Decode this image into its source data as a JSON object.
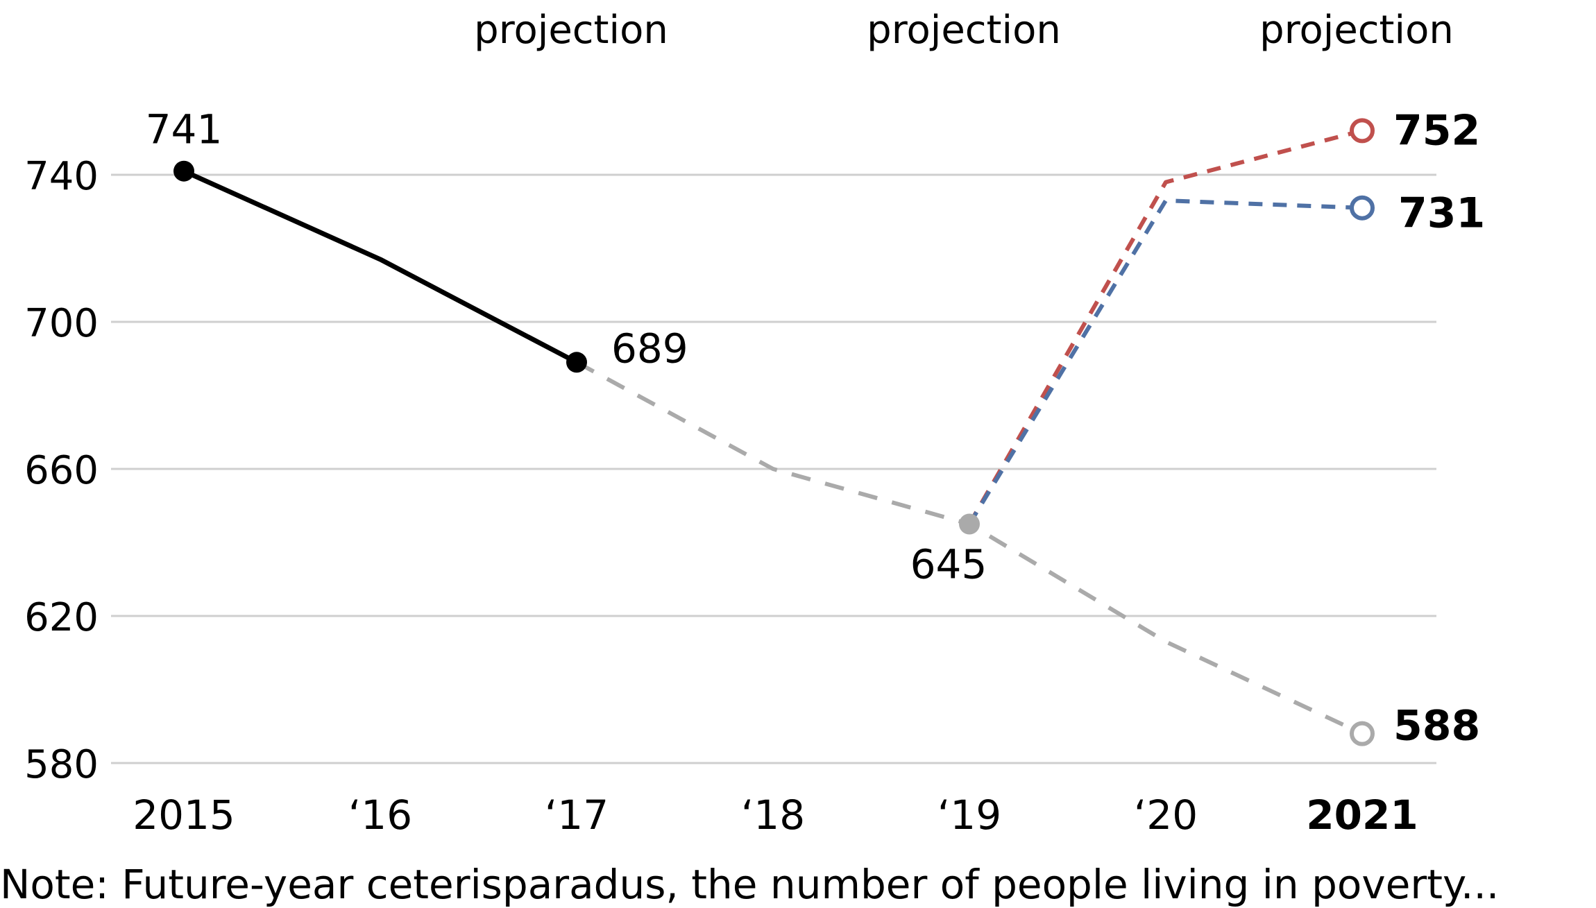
{
  "chart_data": {
    "type": "line",
    "title": "",
    "xlabel": "",
    "ylabel": "",
    "x": [
      "2015",
      "‘16",
      "‘17",
      "‘18",
      "‘19",
      "‘20",
      "2021"
    ],
    "ylim": [
      580,
      752
    ],
    "yticks": [
      580,
      620,
      660,
      700,
      740
    ],
    "grid": true,
    "projection_labels": [
      "projection",
      "projection",
      "projection"
    ],
    "series": [
      {
        "key": "actual",
        "style": "solid",
        "color": "#000000",
        "points": [
          {
            "x": "2015",
            "y": 741
          },
          {
            "x": "‘16",
            "y": 717
          },
          {
            "x": "‘17",
            "y": 689
          }
        ]
      },
      {
        "key": "gray",
        "style": "dashed",
        "color": "#aaaaaa",
        "points": [
          {
            "x": "‘17",
            "y": 689
          },
          {
            "x": "‘18",
            "y": 660
          },
          {
            "x": "‘19",
            "y": 645
          },
          {
            "x": "‘20",
            "y": 613
          },
          {
            "x": "2021",
            "y": 588
          }
        ]
      },
      {
        "key": "red",
        "style": "dashed",
        "color": "#c0504d",
        "points": [
          {
            "x": "‘19",
            "y": 645
          },
          {
            "x": "‘20",
            "y": 738
          },
          {
            "x": "2021",
            "y": 752
          }
        ]
      },
      {
        "key": "blue",
        "style": "dashed",
        "color": "#4f71a5",
        "points": [
          {
            "x": "‘19",
            "y": 645
          },
          {
            "x": "‘20",
            "y": 733
          },
          {
            "x": "2021",
            "y": 731
          }
        ]
      }
    ],
    "data_labels": [
      {
        "text": "741",
        "x": "2015",
        "y": 741
      },
      {
        "text": "689",
        "x": "‘17",
        "y": 689
      },
      {
        "text": "645",
        "x": "‘19",
        "y": 645
      },
      {
        "text": "752",
        "x": "2021",
        "y": 752
      },
      {
        "text": "731",
        "x": "2021",
        "y": 731
      },
      {
        "text": "588",
        "x": "2021",
        "y": 588
      }
    ],
    "note": "Note: Future-year ceterisparadus, the number of people living in poverty..."
  }
}
